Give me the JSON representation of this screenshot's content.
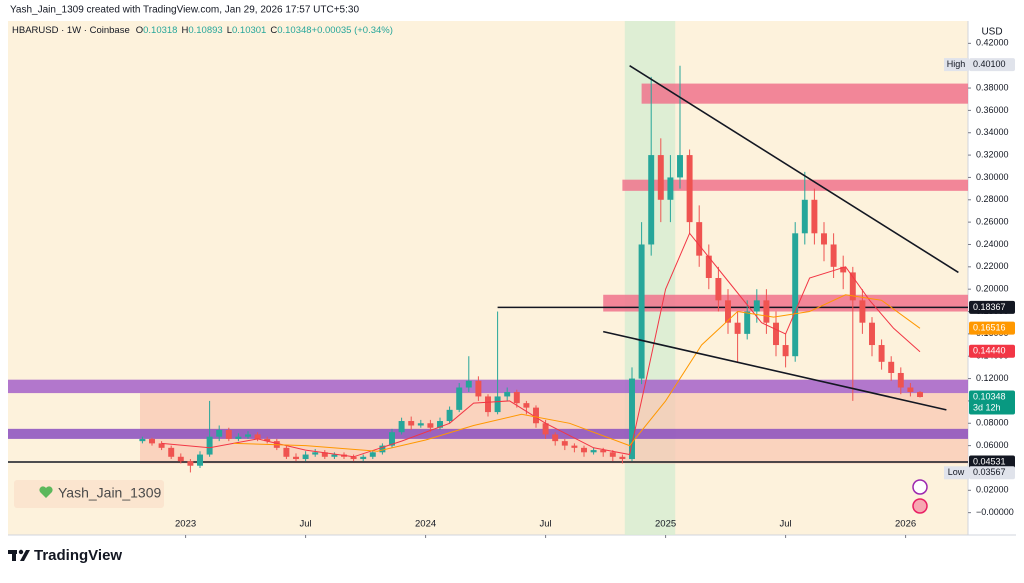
{
  "header": {
    "credit": "Yash_Jain_1309 created with TradingView.com, Jan 29, 2026 17:57 UTC+5:30"
  },
  "chart_data": {
    "type": "candlestick",
    "symbol": "HBARUSD · 1W · Coinbase",
    "ohlc_legend": [
      {
        "key": "O",
        "text": "0.10318"
      },
      {
        "key": "H",
        "text": "0.10893"
      },
      {
        "key": "L",
        "text": "0.10301"
      },
      {
        "key": "C",
        "text": "0.10348"
      },
      {
        "key": "",
        "text": "+0.00035 (+0.34%)"
      }
    ],
    "currency": "USD",
    "watermark": "Yash_Jain_1309",
    "up_color": "#26a69a",
    "down_color": "#ef5350",
    "xlim": [
      2022.26,
      2026.26
    ],
    "xticks": [
      {
        "value": 2023,
        "label": "2023"
      },
      {
        "value": 2023.5,
        "label": "Jul"
      },
      {
        "value": 2024,
        "label": "2024"
      },
      {
        "value": 2024.5,
        "label": "Jul"
      },
      {
        "value": 2025,
        "label": "2025"
      },
      {
        "value": 2025.5,
        "label": "Jul"
      },
      {
        "value": 2026,
        "label": "2026"
      }
    ],
    "ylim": [
      -0.02,
      0.44
    ],
    "yticks": [
      {
        "value": 0.42,
        "label": "0.42000"
      },
      {
        "value": 0.4,
        "label": "0.40000"
      },
      {
        "value": 0.38,
        "label": "0.38000"
      },
      {
        "value": 0.36,
        "label": "0.36000"
      },
      {
        "value": 0.34,
        "label": "0.34000"
      },
      {
        "value": 0.32,
        "label": "0.32000"
      },
      {
        "value": 0.3,
        "label": "0.30000"
      },
      {
        "value": 0.28,
        "label": "0.28000"
      },
      {
        "value": 0.26,
        "label": "0.26000"
      },
      {
        "value": 0.24,
        "label": "0.24000"
      },
      {
        "value": 0.22,
        "label": "0.22000"
      },
      {
        "value": 0.2,
        "label": "0.20000"
      },
      {
        "value": 0.18,
        "label": "0.18000"
      },
      {
        "value": 0.16,
        "label": "0.16000"
      },
      {
        "value": 0.14,
        "label": "0.14000"
      },
      {
        "value": 0.12,
        "label": "0.12000"
      },
      {
        "value": 0.1,
        "label": "0.10000"
      },
      {
        "value": 0.08,
        "label": "0.08000"
      },
      {
        "value": 0.06,
        "label": "0.06000"
      },
      {
        "value": 0.04,
        "label": "0.04000"
      },
      {
        "value": 0.02,
        "label": "0.02000"
      },
      {
        "value": 0,
        "label": "−0.00000"
      }
    ],
    "candles": {
      "x": [
        2022.82,
        2022.86,
        2022.9,
        2022.94,
        2022.98,
        2023.02,
        2023.06,
        2023.1,
        2023.14,
        2023.18,
        2023.22,
        2023.26,
        2023.3,
        2023.34,
        2023.38,
        2023.42,
        2023.46,
        2023.5,
        2023.54,
        2023.58,
        2023.62,
        2023.66,
        2023.7,
        2023.74,
        2023.78,
        2023.82,
        2023.86,
        2023.9,
        2023.94,
        2023.98,
        2024.02,
        2024.06,
        2024.1,
        2024.14,
        2024.18,
        2024.22,
        2024.26,
        2024.3,
        2024.34,
        2024.38,
        2024.42,
        2024.46,
        2024.5,
        2024.54,
        2024.58,
        2024.62,
        2024.66,
        2024.7,
        2024.74,
        2024.78,
        2024.82,
        2024.86,
        2024.9,
        2024.94,
        2024.98,
        2025.02,
        2025.06,
        2025.1,
        2025.14,
        2025.18,
        2025.22,
        2025.26,
        2025.3,
        2025.34,
        2025.38,
        2025.42,
        2025.46,
        2025.5,
        2025.54,
        2025.58,
        2025.62,
        2025.66,
        2025.7,
        2025.74,
        2025.78,
        2025.82,
        2025.86,
        2025.9,
        2025.94,
        2025.98,
        2026.02,
        2026.06
      ],
      "open": [
        0.064,
        0.066,
        0.062,
        0.058,
        0.05,
        0.046,
        0.042,
        0.052,
        0.068,
        0.074,
        0.066,
        0.068,
        0.07,
        0.066,
        0.064,
        0.058,
        0.05,
        0.048,
        0.052,
        0.054,
        0.05,
        0.052,
        0.05,
        0.048,
        0.05,
        0.054,
        0.06,
        0.072,
        0.082,
        0.078,
        0.08,
        0.076,
        0.082,
        0.092,
        0.112,
        0.118,
        0.104,
        0.09,
        0.104,
        0.108,
        0.098,
        0.094,
        0.08,
        0.07,
        0.064,
        0.06,
        0.058,
        0.054,
        0.056,
        0.054,
        0.05,
        0.048,
        0.12,
        0.24,
        0.32,
        0.28,
        0.3,
        0.32,
        0.26,
        0.23,
        0.21,
        0.19,
        0.17,
        0.16,
        0.18,
        0.19,
        0.17,
        0.15,
        0.14,
        0.25,
        0.28,
        0.25,
        0.24,
        0.22,
        0.215,
        0.19,
        0.17,
        0.15,
        0.135,
        0.125,
        0.112,
        0.108
      ],
      "high": [
        0.068,
        0.067,
        0.064,
        0.06,
        0.053,
        0.048,
        0.055,
        0.1,
        0.078,
        0.076,
        0.071,
        0.073,
        0.072,
        0.068,
        0.066,
        0.06,
        0.053,
        0.055,
        0.057,
        0.056,
        0.054,
        0.054,
        0.052,
        0.052,
        0.056,
        0.062,
        0.075,
        0.085,
        0.086,
        0.083,
        0.083,
        0.085,
        0.095,
        0.116,
        0.14,
        0.122,
        0.106,
        0.18,
        0.112,
        0.11,
        0.1,
        0.096,
        0.083,
        0.072,
        0.066,
        0.062,
        0.06,
        0.058,
        0.058,
        0.056,
        0.052,
        0.13,
        0.26,
        0.39,
        0.335,
        0.32,
        0.4,
        0.325,
        0.275,
        0.24,
        0.22,
        0.2,
        0.18,
        0.19,
        0.2,
        0.2,
        0.18,
        0.16,
        0.26,
        0.305,
        0.29,
        0.26,
        0.25,
        0.23,
        0.22,
        0.2,
        0.175,
        0.155,
        0.14,
        0.13,
        0.116,
        0.1089
      ],
      "low": [
        0.062,
        0.06,
        0.056,
        0.048,
        0.044,
        0.036,
        0.04,
        0.05,
        0.064,
        0.064,
        0.064,
        0.066,
        0.064,
        0.062,
        0.056,
        0.048,
        0.046,
        0.046,
        0.05,
        0.048,
        0.048,
        0.048,
        0.046,
        0.046,
        0.048,
        0.052,
        0.058,
        0.07,
        0.074,
        0.076,
        0.072,
        0.074,
        0.08,
        0.09,
        0.108,
        0.1,
        0.086,
        0.088,
        0.1,
        0.094,
        0.088,
        0.076,
        0.066,
        0.06,
        0.056,
        0.054,
        0.05,
        0.052,
        0.05,
        0.046,
        0.044,
        0.046,
        0.115,
        0.23,
        0.26,
        0.26,
        0.29,
        0.25,
        0.22,
        0.2,
        0.18,
        0.16,
        0.135,
        0.155,
        0.17,
        0.16,
        0.14,
        0.13,
        0.135,
        0.24,
        0.24,
        0.225,
        0.21,
        0.2,
        0.1,
        0.16,
        0.14,
        0.128,
        0.118,
        0.106,
        0.104,
        0.103
      ],
      "close": [
        0.066,
        0.062,
        0.058,
        0.05,
        0.046,
        0.042,
        0.052,
        0.068,
        0.074,
        0.066,
        0.068,
        0.07,
        0.066,
        0.064,
        0.058,
        0.05,
        0.048,
        0.052,
        0.054,
        0.05,
        0.052,
        0.05,
        0.048,
        0.05,
        0.054,
        0.06,
        0.072,
        0.082,
        0.078,
        0.08,
        0.076,
        0.082,
        0.092,
        0.112,
        0.118,
        0.104,
        0.09,
        0.104,
        0.108,
        0.098,
        0.094,
        0.08,
        0.07,
        0.064,
        0.06,
        0.058,
        0.054,
        0.056,
        0.054,
        0.05,
        0.048,
        0.12,
        0.24,
        0.32,
        0.28,
        0.3,
        0.32,
        0.26,
        0.23,
        0.21,
        0.19,
        0.17,
        0.16,
        0.18,
        0.19,
        0.17,
        0.15,
        0.14,
        0.25,
        0.28,
        0.25,
        0.24,
        0.22,
        0.215,
        0.19,
        0.17,
        0.15,
        0.135,
        0.125,
        0.112,
        0.108,
        0.1035
      ]
    },
    "series": [
      {
        "color": "#f23645",
        "x": [
          2022.9,
          2023.1,
          2023.3,
          2023.5,
          2023.7,
          2023.9,
          2024.1,
          2024.2,
          2024.35,
          2024.5,
          2024.7,
          2024.85,
          2024.92,
          2025.0,
          2025.1,
          2025.25,
          2025.4,
          2025.5,
          2025.6,
          2025.75,
          2025.85,
          2025.95,
          2026.06
        ],
        "values": [
          0.062,
          0.058,
          0.066,
          0.056,
          0.05,
          0.064,
          0.08,
          0.098,
          0.1,
          0.08,
          0.058,
          0.052,
          0.12,
          0.2,
          0.25,
          0.21,
          0.17,
          0.16,
          0.21,
          0.22,
          0.19,
          0.165,
          0.144
        ]
      },
      {
        "color": "#ff9800",
        "x": [
          2023.2,
          2023.5,
          2023.8,
          2024.0,
          2024.2,
          2024.4,
          2024.6,
          2024.85,
          2025.0,
          2025.15,
          2025.3,
          2025.45,
          2025.6,
          2025.75,
          2025.9,
          2026.06
        ],
        "values": [
          0.062,
          0.06,
          0.055,
          0.065,
          0.078,
          0.088,
          0.08,
          0.06,
          0.1,
          0.15,
          0.18,
          0.175,
          0.18,
          0.195,
          0.19,
          0.165
        ]
      }
    ],
    "shaded_range": {
      "from": 2024.83,
      "to": 2025.04,
      "color": "#d6ecd2"
    },
    "zones": [
      {
        "low": 0.044,
        "high": 0.107,
        "from": 2022.81,
        "to": 2026.26,
        "color": "#f8c8b4"
      },
      {
        "low": 0.107,
        "high": 0.119,
        "from": 2022.26,
        "to": 2026.26,
        "color": "#a561c9"
      },
      {
        "low": 0.066,
        "high": 0.075,
        "from": 2022.26,
        "to": 2026.26,
        "color": "#8a4fc0"
      },
      {
        "low": 0.366,
        "high": 0.384,
        "from": 2024.9,
        "to": 2026.26,
        "color": "#f0738c"
      },
      {
        "low": 0.288,
        "high": 0.298,
        "from": 2024.82,
        "to": 2026.26,
        "color": "#f0738c"
      },
      {
        "low": 0.18,
        "high": 0.195,
        "from": 2024.74,
        "to": 2026.26,
        "color": "#f0738c"
      }
    ],
    "levels": [
      {
        "value": 0.18367,
        "from": 2024.3
      },
      {
        "value": 0.04531,
        "from": 2022.26
      }
    ],
    "trendlines": [
      {
        "from": 2024.85,
        "to": 2026.22,
        "start": 0.4,
        "end": 0.215
      },
      {
        "from": 2024.74,
        "to": 2026.17,
        "start": 0.162,
        "end": 0.092
      }
    ],
    "price_labels": [
      {
        "value": 0.401,
        "label": "0.40100",
        "tag": "High",
        "bg": "#e0e3eb",
        "fg": "#131722"
      },
      {
        "value": 0.18367,
        "label": "0.18367",
        "bg": "#131722",
        "fg": "#ffffff"
      },
      {
        "value": 0.16516,
        "label": "0.16516",
        "bg": "#ff9800",
        "fg": "#ffffff"
      },
      {
        "value": 0.1444,
        "label": "0.14440",
        "bg": "#f23645",
        "fg": "#ffffff"
      },
      {
        "value": 0.10348,
        "label": "0.10348",
        "sub": "3d 12h",
        "bg": "#089981",
        "fg": "#ffffff"
      },
      {
        "value": 0.04531,
        "label": "0.04531",
        "bg": "#131722",
        "fg": "#ffffff"
      },
      {
        "value": 0.03567,
        "label": "0.03567",
        "tag": "Low",
        "bg": "#e0e3eb",
        "fg": "#131722"
      }
    ]
  },
  "footer": {
    "brand": "TradingView"
  }
}
